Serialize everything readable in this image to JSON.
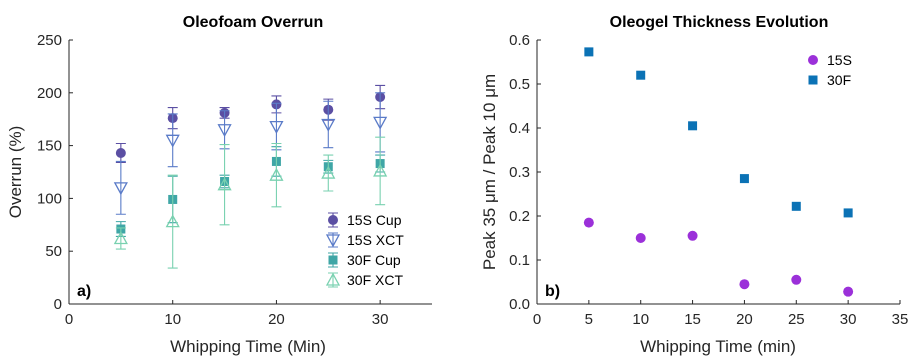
{
  "chart_data": [
    {
      "type": "scatter",
      "title": "Oleofoam Overrun",
      "xlabel": "Whipping Time (Min)",
      "ylabel": "Overrun (%)",
      "xlim": [
        0,
        35
      ],
      "ylim": [
        0,
        250
      ],
      "xticks": [
        0,
        10,
        20,
        30
      ],
      "yticks": [
        0,
        50,
        100,
        150,
        200,
        250
      ],
      "panel_label": "a)",
      "legend_position": "bottom-right",
      "series": [
        {
          "name": "15S Cup",
          "marker": "circle",
          "color": "#5b4fa3",
          "x": [
            5,
            10,
            15,
            20,
            25,
            30
          ],
          "y": [
            143,
            176,
            181,
            189,
            184,
            196
          ],
          "err": [
            9,
            10,
            5,
            8,
            10,
            11
          ]
        },
        {
          "name": "15S XCT",
          "marker": "triangle-down",
          "color": "#5a7bc8",
          "x": [
            5,
            10,
            15,
            20,
            25,
            30
          ],
          "y": [
            110,
            155,
            165,
            168,
            170,
            172
          ],
          "err": [
            25,
            25,
            18,
            22,
            22,
            28
          ]
        },
        {
          "name": "30F Cup",
          "marker": "square",
          "color": "#3fa6a6",
          "x": [
            5,
            10,
            15,
            20,
            25,
            30
          ],
          "y": [
            71,
            99,
            116,
            135,
            130,
            133
          ],
          "err": [
            7,
            22,
            6,
            14,
            6,
            8
          ]
        },
        {
          "name": "30F XCT",
          "marker": "triangle-up",
          "color": "#79d1b0",
          "x": [
            5,
            10,
            15,
            20,
            25,
            30
          ],
          "y": [
            62,
            78,
            113,
            122,
            124,
            126
          ],
          "err": [
            10,
            44,
            38,
            30,
            17,
            32
          ]
        }
      ]
    },
    {
      "type": "scatter",
      "title": "Oleogel Thickness Evolution",
      "xlabel": "Whipping Time (min)",
      "ylabel": "Peak 35 μm / Peak 10 μm",
      "xlim": [
        0,
        35
      ],
      "ylim": [
        0,
        0.6
      ],
      "xticks": [
        0,
        5,
        10,
        15,
        20,
        25,
        30,
        35
      ],
      "yticks": [
        0,
        0.1,
        0.2,
        0.3,
        0.4,
        0.5,
        0.6
      ],
      "panel_label": "b)",
      "legend_position": "top-right",
      "series": [
        {
          "name": "15S",
          "marker": "circle",
          "color": "#9b30d9",
          "x": [
            5,
            10,
            15,
            20,
            25,
            30
          ],
          "y": [
            0.185,
            0.15,
            0.155,
            0.045,
            0.055,
            0.028
          ]
        },
        {
          "name": "30F",
          "marker": "square",
          "color": "#0b72b5",
          "x": [
            5,
            10,
            15,
            20,
            25,
            30
          ],
          "y": [
            0.573,
            0.52,
            0.405,
            0.285,
            0.222,
            0.207
          ]
        }
      ]
    }
  ]
}
